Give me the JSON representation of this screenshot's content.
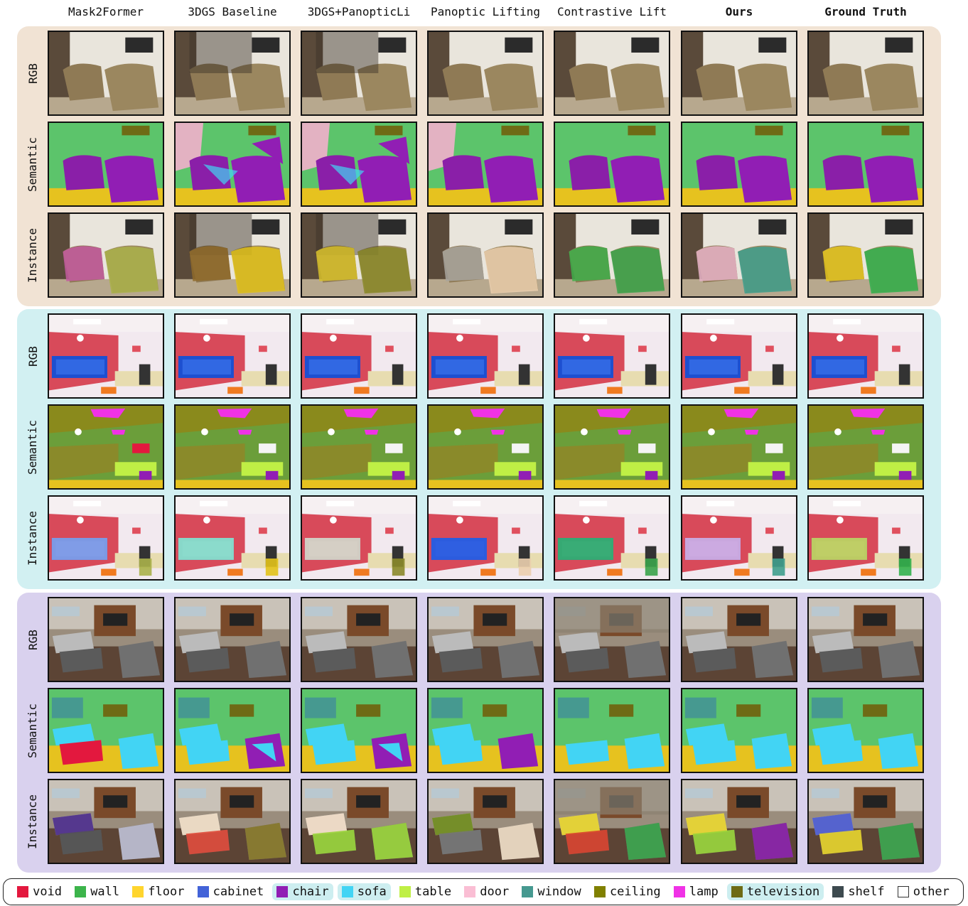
{
  "columns": [
    {
      "label": "Mask2Former",
      "bold": false
    },
    {
      "label": "3DGS Baseline",
      "bold": false
    },
    {
      "label": "3DGS+PanopticLi",
      "bold": false
    },
    {
      "label": "Panoptic Lifting",
      "bold": false
    },
    {
      "label": "Contrastive Lift",
      "bold": false
    },
    {
      "label": "Ours",
      "bold": true
    },
    {
      "label": "Ground Truth",
      "bold": true
    }
  ],
  "row_labels": [
    "RGB",
    "Semantic",
    "Instance"
  ],
  "panels": [
    {
      "scene": "living-room-armchairs",
      "background": "#f1e3d4"
    },
    {
      "scene": "office-red-wall",
      "background": "#d2f0f2"
    },
    {
      "scene": "lounge-grey-sofas",
      "background": "#d9d1ee"
    }
  ],
  "legend": [
    {
      "label": "void",
      "color": "#e3183e",
      "highlight": false
    },
    {
      "label": "wall",
      "color": "#3cb44b",
      "highlight": false
    },
    {
      "label": "floor",
      "color": "#ffd52e",
      "highlight": false
    },
    {
      "label": "cabinet",
      "color": "#4363d8",
      "highlight": false
    },
    {
      "label": "chair",
      "color": "#911eb4",
      "highlight": true
    },
    {
      "label": "sofa",
      "color": "#42d4f4",
      "highlight": true
    },
    {
      "label": "table",
      "color": "#bfef45",
      "highlight": false
    },
    {
      "label": "door",
      "color": "#fabed4",
      "highlight": false
    },
    {
      "label": "window",
      "color": "#469990",
      "highlight": false
    },
    {
      "label": "ceiling",
      "color": "#808000",
      "highlight": false
    },
    {
      "label": "lamp",
      "color": "#f032e6",
      "highlight": false
    },
    {
      "label": "television",
      "color": "#6e6b15",
      "highlight": true
    },
    {
      "label": "shelf",
      "color": "#3d4a4f",
      "highlight": false
    },
    {
      "label": "other",
      "color": "#ffffff",
      "highlight": false
    }
  ]
}
